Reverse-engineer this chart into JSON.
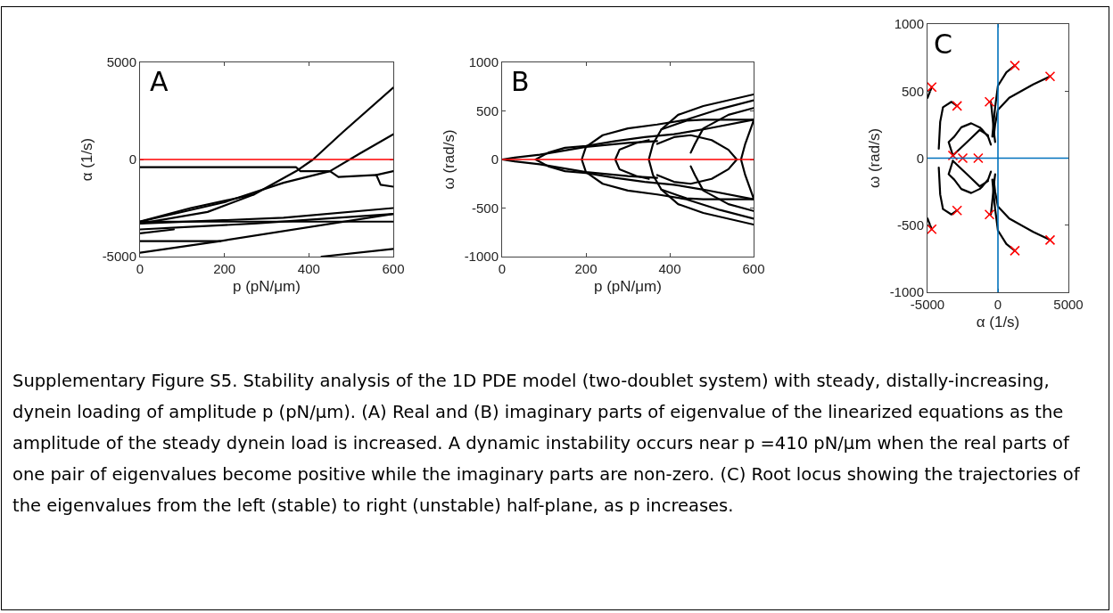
{
  "chart_data": [
    {
      "type": "line",
      "xlabel": "p (pN/μm)",
      "ylabel": "α (1/s)",
      "annotations": [
        "A"
      ],
      "xlim": [
        0,
        600
      ],
      "ylim": [
        -5000,
        5000
      ],
      "xticks": [
        0,
        200,
        400,
        600
      ],
      "yticks": [
        -5000,
        0,
        5000
      ],
      "grid": false,
      "marker": "none",
      "line_style": "solid",
      "ref_lines": [
        {
          "axis": "y",
          "value": 0,
          "color": "#ff0000"
        }
      ],
      "series": [
        {
          "color": "#000000",
          "x": [
            0,
            120,
            270,
            370,
            410,
            480,
            600
          ],
          "values": [
            -3200,
            -2500,
            -1800,
            -600,
            0,
            1400,
            3700
          ]
        },
        {
          "color": "#000000",
          "x": [
            0,
            370,
            380,
            450,
            470,
            560,
            570,
            600
          ],
          "values": [
            -400,
            -400,
            -600,
            -600,
            -900,
            -800,
            -1300,
            -1400
          ]
        },
        {
          "color": "#000000",
          "x": [
            0,
            200,
            340,
            450,
            520,
            600
          ],
          "values": [
            -3200,
            -2200,
            -1200,
            -600,
            300,
            1300
          ]
        },
        {
          "color": "#000000",
          "x": [
            560,
            600
          ],
          "values": [
            -800,
            -600
          ]
        },
        {
          "color": "#000000",
          "x": [
            0,
            160,
            270
          ],
          "values": [
            -3300,
            -2700,
            -1800
          ]
        },
        {
          "color": "#000000",
          "x": [
            0,
            600
          ],
          "values": [
            -3200,
            -3200
          ]
        },
        {
          "color": "#000000",
          "x": [
            0,
            340,
            600
          ],
          "values": [
            -3300,
            -3000,
            -2500
          ]
        },
        {
          "color": "#000000",
          "x": [
            0,
            270,
            600
          ],
          "values": [
            -3600,
            -3300,
            -2800
          ]
        },
        {
          "color": "#000000",
          "x": [
            0,
            80
          ],
          "values": [
            -3800,
            -3600
          ]
        },
        {
          "color": "#000000",
          "x": [
            0,
            190,
            600
          ],
          "values": [
            -4200,
            -4200,
            -2800
          ]
        },
        {
          "color": "#000000",
          "x": [
            0,
            190
          ],
          "values": [
            -4800,
            -4200
          ]
        },
        {
          "color": "#000000",
          "x": [
            430,
            600
          ],
          "values": [
            -5000,
            -4600
          ]
        }
      ]
    },
    {
      "type": "line",
      "xlabel": "p (pN/μm)",
      "ylabel": "ω (rad/s)",
      "annotations": [
        "B"
      ],
      "xlim": [
        0,
        600
      ],
      "ylim": [
        -1000,
        1000
      ],
      "xticks": [
        0,
        200,
        400,
        600
      ],
      "yticks": [
        -1000,
        -500,
        0,
        500,
        1000
      ],
      "grid": false,
      "marker": "none",
      "line_style": "solid",
      "ref_lines": [
        {
          "axis": "y",
          "value": 0,
          "color": "#ff0000"
        }
      ],
      "series": [
        {
          "color": "#000000",
          "x": [
            0,
            30,
            90,
            200,
            300,
            370
          ],
          "values": [
            0,
            20,
            50,
            130,
            170,
            190
          ]
        },
        {
          "color": "#000000",
          "x": [
            0,
            30,
            90,
            200,
            300,
            370
          ],
          "values": [
            0,
            -20,
            -50,
            -130,
            -170,
            -190
          ]
        },
        {
          "color": "#000000",
          "x": [
            600,
            480,
            410,
            340,
            270,
            200,
            150,
            110,
            80,
            110,
            150,
            200,
            270,
            340,
            410,
            480,
            600
          ],
          "values": [
            410,
            310,
            260,
            230,
            190,
            140,
            120,
            70,
            0,
            -70,
            -120,
            -140,
            -190,
            -230,
            -260,
            -310,
            -410
          ]
        },
        {
          "color": "#000000",
          "x": [
            600,
            520,
            440,
            370,
            300,
            240,
            200,
            190,
            200,
            240,
            300,
            370,
            440,
            520,
            600
          ],
          "values": [
            610,
            520,
            410,
            360,
            320,
            250,
            130,
            0,
            -130,
            -250,
            -320,
            -360,
            -410,
            -520,
            -610
          ]
        },
        {
          "color": "#000000",
          "x": [
            350,
            320,
            280,
            270,
            280,
            320,
            350
          ],
          "values": [
            200,
            170,
            100,
            0,
            -100,
            -170,
            -200
          ]
        },
        {
          "color": "#000000",
          "x": [
            600,
            480,
            420,
            380,
            360,
            350,
            360,
            380,
            420,
            480,
            600
          ],
          "values": [
            670,
            550,
            460,
            310,
            160,
            0,
            -160,
            -310,
            -460,
            -550,
            -670
          ]
        },
        {
          "color": "#000000",
          "x": [
            370,
            410,
            450,
            500,
            540,
            560,
            540,
            500,
            450,
            410,
            370
          ],
          "values": [
            160,
            230,
            250,
            200,
            100,
            0,
            -100,
            -200,
            -250,
            -230,
            -160
          ]
        },
        {
          "color": "#000000",
          "x": [
            450,
            460,
            480,
            540,
            600
          ],
          "values": [
            70,
            160,
            320,
            460,
            530
          ]
        },
        {
          "color": "#000000",
          "x": [
            450,
            460,
            480,
            540,
            600
          ],
          "values": [
            -70,
            -160,
            -320,
            -460,
            -530
          ]
        },
        {
          "color": "#000000",
          "x": [
            600,
            580,
            570,
            580,
            600
          ],
          "values": [
            400,
            160,
            0,
            -160,
            -400
          ]
        },
        {
          "color": "#000000",
          "x": [
            380,
            440,
            480,
            600
          ],
          "values": [
            310,
            400,
            410,
            410
          ]
        },
        {
          "color": "#000000",
          "x": [
            380,
            440,
            480,
            600
          ],
          "values": [
            -310,
            -400,
            -410,
            -410
          ]
        }
      ]
    },
    {
      "type": "line",
      "xlabel": "α (1/s)",
      "ylabel": "ω (rad/s)",
      "annotations": [
        "C"
      ],
      "xlim": [
        -5000,
        5000
      ],
      "ylim": [
        -1000,
        1000
      ],
      "xticks": [
        -5000,
        0,
        5000
      ],
      "yticks": [
        -1000,
        -500,
        0,
        500,
        1000
      ],
      "grid": false,
      "marker": "none",
      "line_style": "solid",
      "ref_lines": [
        {
          "axis": "x",
          "value": 0,
          "color": "#0072bd"
        },
        {
          "axis": "y",
          "value": 0,
          "color": "#0072bd"
        }
      ],
      "series": [
        {
          "color": "#000000",
          "x": [
            1200,
            600,
            0,
            -200,
            -400
          ],
          "values": [
            690,
            640,
            540,
            380,
            160
          ]
        },
        {
          "color": "#000000",
          "x": [
            3700,
            2500,
            800,
            0,
            -200,
            -300
          ],
          "values": [
            610,
            550,
            450,
            360,
            250,
            160
          ]
        },
        {
          "color": "#000000",
          "x": [
            -600,
            -500,
            -400,
            -300,
            -200
          ],
          "values": [
            420,
            420,
            320,
            210,
            120
          ]
        },
        {
          "color": "#000000",
          "x": [
            -2900,
            -3300,
            -3900,
            -4100,
            -4200
          ],
          "values": [
            390,
            420,
            380,
            270,
            70
          ]
        },
        {
          "color": "#000000",
          "x": [
            -4700,
            -5000
          ],
          "values": [
            530,
            450
          ]
        },
        {
          "color": "#000000",
          "x": [
            -3200,
            -3500,
            -3100,
            -2600,
            -1900,
            -1300,
            -1100,
            -700,
            -500
          ],
          "values": [
            20,
            120,
            160,
            230,
            260,
            230,
            210,
            160,
            100
          ]
        },
        {
          "color": "#000000",
          "x": [
            -3200,
            -2000,
            -1300,
            -700
          ],
          "values": [
            20,
            140,
            210,
            170
          ]
        },
        {
          "color": "#000000",
          "x": [
            1200,
            600,
            0,
            -200,
            -400
          ],
          "values": [
            -690,
            -640,
            -540,
            -380,
            -160
          ]
        },
        {
          "color": "#000000",
          "x": [
            3700,
            2500,
            800,
            0,
            -200,
            -300
          ],
          "values": [
            -610,
            -550,
            -450,
            -360,
            -250,
            -160
          ]
        },
        {
          "color": "#000000",
          "x": [
            -600,
            -500,
            -400,
            -300,
            -200
          ],
          "values": [
            -420,
            -420,
            -320,
            -210,
            -120
          ]
        },
        {
          "color": "#000000",
          "x": [
            -2900,
            -3300,
            -3900,
            -4100,
            -4200
          ],
          "values": [
            -390,
            -420,
            -380,
            -270,
            -70
          ]
        },
        {
          "color": "#000000",
          "x": [
            -4700,
            -5000
          ],
          "values": [
            -530,
            -450
          ]
        },
        {
          "color": "#000000",
          "x": [
            -3200,
            -3500,
            -3100,
            -2600,
            -1900,
            -1300,
            -1100,
            -700,
            -500
          ],
          "values": [
            -20,
            -120,
            -160,
            -230,
            -260,
            -230,
            -210,
            -160,
            -100
          ]
        },
        {
          "color": "#000000",
          "x": [
            -3200,
            -2000,
            -1300,
            -700
          ],
          "values": [
            -20,
            -140,
            -210,
            -170
          ]
        },
        {
          "type": "scatter",
          "marker": "cross",
          "color": "#ff0000",
          "x": [
            -4700,
            -2900,
            -600,
            1200,
            3700,
            -3200,
            -2500,
            -1400,
            -4700,
            -2900,
            -600,
            1200,
            3700
          ],
          "values": [
            530,
            390,
            420,
            690,
            610,
            20,
            0,
            0,
            -530,
            -390,
            -420,
            -690,
            -610
          ]
        }
      ]
    },
    {
      "type": "other",
      "annotations": [
        "Supplementary Figure S5. Stability analysis of the 1D PDE model (two-doublet system) with steady, distally-increasing, dynein loading of amplitude p (pN/µm). (A) Real and (B) imaginary parts of eigenvalue of the linearized equations as the amplitude of the steady dynein load is increased. A dynamic instability occurs near p =410 pN/µm when the real parts of one pair of eigenvalues become positive while the imaginary parts are non-zero. (C) Root locus showing the trajectories of the eigenvalues from the left (stable) to right (unstable) half-plane, as p increases."
      ]
    }
  ]
}
